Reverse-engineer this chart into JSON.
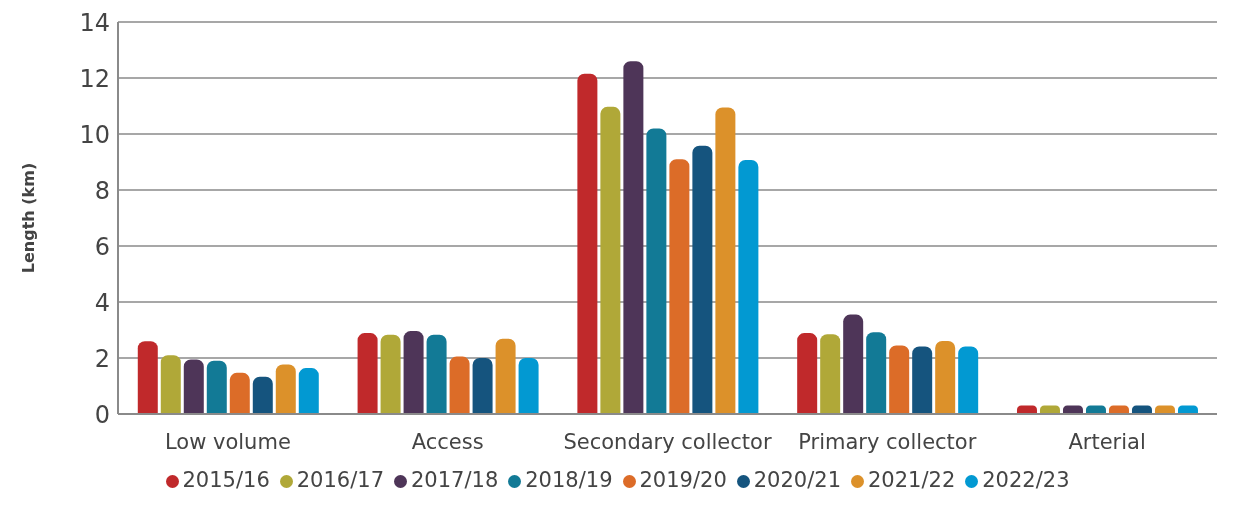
{
  "chart_data": {
    "type": "bar",
    "ylabel": "Length (km)",
    "categories": [
      "Low volume",
      "Access",
      "Secondary collector",
      "Primary collector",
      "Arterial"
    ],
    "series": [
      {
        "name": "2015/16",
        "color": "#c0292b",
        "values": [
          2.6,
          2.89,
          12.15,
          2.89,
          0.3
        ]
      },
      {
        "name": "2016/17",
        "color": "#b0a838",
        "values": [
          2.1,
          2.83,
          10.97,
          2.85,
          0.3
        ]
      },
      {
        "name": "2017/18",
        "color": "#4e3558",
        "values": [
          1.95,
          2.96,
          12.6,
          3.55,
          0.3
        ]
      },
      {
        "name": "2018/19",
        "color": "#127a96",
        "values": [
          1.9,
          2.83,
          10.2,
          2.92,
          0.3
        ]
      },
      {
        "name": "2019/20",
        "color": "#dc6c28",
        "values": [
          1.47,
          2.05,
          9.1,
          2.45,
          0.3
        ]
      },
      {
        "name": "2020/21",
        "color": "#15547e",
        "values": [
          1.33,
          2.0,
          9.58,
          2.41,
          0.3
        ]
      },
      {
        "name": "2021/22",
        "color": "#dc912a",
        "values": [
          1.77,
          2.69,
          10.95,
          2.61,
          0.3
        ]
      },
      {
        "name": "2022/23",
        "color": "#0299d2",
        "values": [
          1.64,
          2.0,
          9.07,
          2.41,
          0.3
        ]
      }
    ],
    "ylim": [
      0,
      14
    ],
    "yticks": [
      0,
      2,
      4,
      6,
      8,
      10,
      12,
      14
    ],
    "grid": "y",
    "legend": "bottom"
  }
}
